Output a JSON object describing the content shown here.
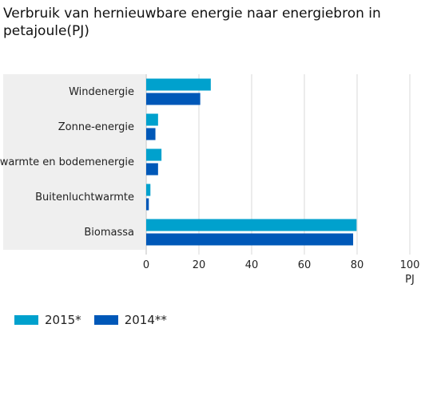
{
  "chart_data": {
    "type": "bar",
    "orientation": "horizontal",
    "title": "Verbruik van hernieuwbare energie naar energiebron in petajoule(PJ)",
    "categories": [
      "Windenergie",
      "Zonne-energie",
      "Bodemwarmte en bodemenergie",
      "Buitenluchtwarmte",
      "Biomassa"
    ],
    "series": [
      {
        "name": "2015*",
        "color": "#00a1cd",
        "values": [
          24.5,
          4.5,
          5.8,
          1.6,
          79.8
        ]
      },
      {
        "name": "2014**",
        "color": "#0058b8",
        "values": [
          20.5,
          3.5,
          4.5,
          1.0,
          78.5
        ]
      }
    ],
    "xlabel": "PJ",
    "ylabel": "",
    "xlim": [
      0,
      100
    ],
    "xticks": [
      0,
      20,
      40,
      60,
      80,
      100
    ],
    "grid": true,
    "legend_position": "bottom-left"
  }
}
